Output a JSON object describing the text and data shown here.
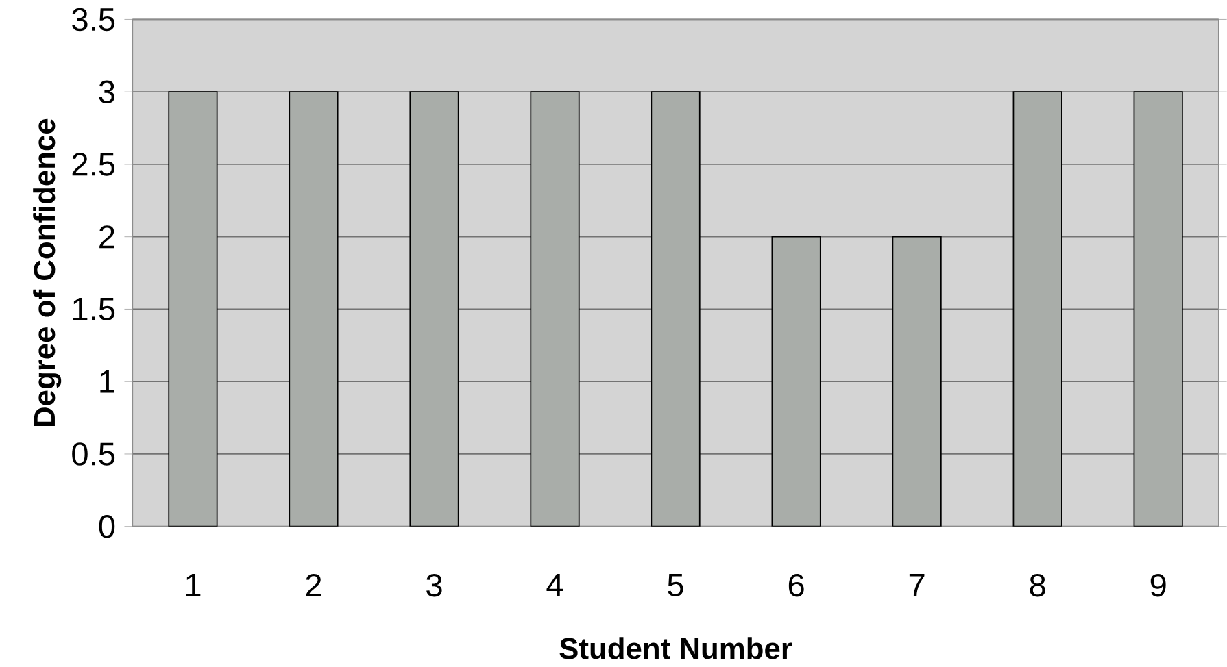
{
  "chart_data": {
    "type": "bar",
    "xlabel": "Student Number",
    "ylabel": "Degree of Confidence",
    "categories": [
      "1",
      "2",
      "3",
      "4",
      "5",
      "6",
      "7",
      "8",
      "9"
    ],
    "values": [
      3,
      3,
      3,
      3,
      3,
      2,
      2,
      3,
      3
    ],
    "color": "#a9ada9",
    "ylim": [
      0,
      3.5
    ],
    "yticks": [
      0,
      0.5,
      1,
      1.5,
      2,
      2.5,
      3,
      3.5
    ],
    "grid": "y"
  }
}
